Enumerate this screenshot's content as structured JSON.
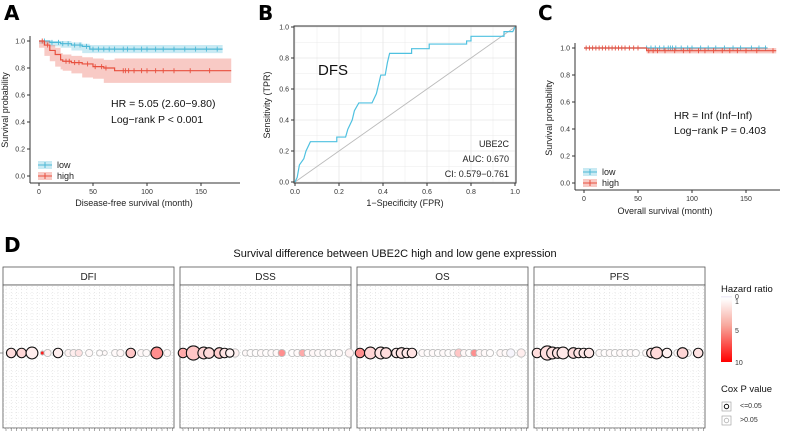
{
  "panel_labels": [
    "A",
    "B",
    "C",
    "D"
  ],
  "colors": {
    "low": "#4db8d6",
    "high": "#e8503f",
    "roc": "#4fc1e0",
    "diag": "#bbbbbb",
    "hr_low": "#eeeaf8",
    "hr_mid": "#ffffff",
    "hr_high": "#ff0000"
  },
  "chart_data": [
    {
      "id": "A",
      "type": "line",
      "xlabel": "Disease-free survival (month)",
      "ylabel": "Survival probability",
      "xlim": [
        0,
        180
      ],
      "ylim": [
        0,
        1
      ],
      "xticks": [
        "0",
        "50",
        "100",
        "150"
      ],
      "yticks": [
        "0.0",
        "0.2",
        "0.4",
        "0.6",
        "0.8",
        "1.0"
      ],
      "legend": [
        "low",
        "high"
      ],
      "legend_position": "bottom-left",
      "annotation": [
        "HR = 5.05 (2.60−9.80)",
        "Log−rank P < 0.001"
      ],
      "series": [
        {
          "name": "low",
          "x": [
            0,
            10,
            20,
            30,
            40,
            47,
            170
          ],
          "y": [
            1,
            0.99,
            0.98,
            0.97,
            0.96,
            0.94,
            0.94
          ],
          "ci_lo": [
            1,
            0.98,
            0.96,
            0.95,
            0.93,
            0.91,
            0.91
          ],
          "ci_hi": [
            1,
            1,
            1,
            0.99,
            0.98,
            0.97,
            0.97
          ],
          "censor": [
            5,
            12,
            18,
            22,
            27,
            33,
            38,
            44,
            50,
            55,
            60,
            65,
            70,
            78,
            82,
            88,
            95,
            100,
            108,
            115,
            125,
            135,
            145,
            155,
            165
          ]
        },
        {
          "name": "high",
          "x": [
            0,
            5,
            10,
            15,
            20,
            22,
            30,
            40,
            50,
            60,
            70,
            178
          ],
          "y": [
            1,
            0.97,
            0.93,
            0.9,
            0.86,
            0.85,
            0.84,
            0.83,
            0.81,
            0.8,
            0.78,
            0.78
          ],
          "ci_lo": [
            1,
            0.95,
            0.89,
            0.85,
            0.81,
            0.79,
            0.78,
            0.76,
            0.73,
            0.72,
            0.69,
            0.69
          ],
          "ci_hi": [
            1,
            1,
            0.97,
            0.95,
            0.91,
            0.9,
            0.89,
            0.88,
            0.87,
            0.86,
            0.87,
            0.87
          ],
          "censor": [
            3,
            8,
            25,
            28,
            33,
            37,
            45,
            52,
            58,
            62,
            78,
            80,
            83,
            88,
            95,
            100,
            108,
            115,
            125,
            140,
            158
          ]
        }
      ]
    },
    {
      "id": "B",
      "type": "line",
      "xlabel": "1−Specificity (FPR)",
      "ylabel": "Sensitivity (TPR)",
      "xlim": [
        0,
        1
      ],
      "ylim": [
        0,
        1
      ],
      "grid": true,
      "xticks": [
        "0.0",
        "0.2",
        "0.4",
        "0.6",
        "0.8",
        "1.0"
      ],
      "yticks": [
        "0.0",
        "0.2",
        "0.4",
        "0.6",
        "0.8",
        "1.0"
      ],
      "title_inset": "DFS",
      "annotation": [
        "UBE2C",
        "AUC: 0.670",
        "CI: 0.579−0.761"
      ],
      "series": [
        {
          "x": [
            0,
            0.01,
            0.02,
            0.04,
            0.05,
            0.07,
            0.19,
            0.19,
            0.23,
            0.24,
            0.26,
            0.27,
            0.29,
            0.35,
            0.37,
            0.38,
            0.39,
            0.41,
            0.42,
            0.43,
            0.53,
            0.53,
            0.61,
            0.61,
            0.78,
            0.78,
            0.8,
            0.8,
            0.95,
            0.95,
            0.99,
            1
          ],
          "y": [
            0,
            0.03,
            0.11,
            0.15,
            0.2,
            0.26,
            0.26,
            0.29,
            0.29,
            0.34,
            0.4,
            0.46,
            0.51,
            0.51,
            0.57,
            0.63,
            0.69,
            0.69,
            0.77,
            0.83,
            0.83,
            0.86,
            0.86,
            0.89,
            0.89,
            0.91,
            0.91,
            0.94,
            0.94,
            0.97,
            0.97,
            1
          ]
        }
      ]
    },
    {
      "id": "C",
      "type": "line",
      "xlabel": "Overall survival (month)",
      "ylabel": "Survival probability",
      "xlim": [
        0,
        180
      ],
      "ylim": [
        0,
        1
      ],
      "xticks": [
        "0",
        "50",
        "100",
        "150"
      ],
      "yticks": [
        "0.0",
        "0.2",
        "0.4",
        "0.6",
        "0.8",
        "1.0"
      ],
      "legend": [
        "low",
        "high"
      ],
      "legend_position": "bottom-left",
      "annotation": [
        "HR = Inf (Inf−Inf)",
        "Log−rank P = 0.403"
      ],
      "series": [
        {
          "name": "low",
          "x": [
            0,
            170
          ],
          "y": [
            1,
            1
          ],
          "ci_lo": [
            1,
            1
          ],
          "ci_hi": [
            1,
            1
          ],
          "censor": [
            58,
            62,
            66,
            70,
            74,
            78,
            80,
            82,
            85,
            90,
            96,
            100,
            108,
            115,
            122,
            130,
            138,
            145,
            155,
            162,
            168
          ]
        },
        {
          "name": "high",
          "x": [
            0,
            58,
            58,
            178
          ],
          "y": [
            1,
            1,
            0.98,
            0.98
          ],
          "ci_lo": [
            1,
            1,
            0.96,
            0.96
          ],
          "ci_hi": [
            1,
            1,
            1,
            1
          ],
          "censor": [
            2,
            5,
            8,
            11,
            14,
            17,
            20,
            23,
            26,
            29,
            32,
            35,
            38,
            42,
            46,
            50,
            60,
            64,
            68,
            75,
            84,
            92,
            98,
            106,
            112,
            120,
            128,
            135,
            142,
            150,
            160,
            175
          ]
        }
      ]
    },
    {
      "id": "D",
      "type": "scatter",
      "title": "Survival difference between UBE2C high and low gene expression",
      "facets": [
        "DFI",
        "DSS",
        "OS",
        "PFS"
      ],
      "legend_hr": {
        "title": "Hazard ratio",
        "ticks": [
          "0",
          "1",
          "5",
          "10"
        ]
      },
      "legend_p": {
        "title": "Cox P value",
        "items": [
          "<=0.05",
          ">0.05"
        ]
      },
      "points": [
        [
          [
            1,
            2.2,
            1,
            3
          ],
          [
            3,
            2.4,
            1,
            3
          ],
          [
            5,
            1.6,
            1,
            4
          ],
          [
            7,
            9,
            0,
            0.6
          ],
          [
            8,
            1.5,
            0,
            2
          ],
          [
            10,
            1.6,
            1,
            3
          ],
          [
            12,
            1.4,
            0,
            2
          ],
          [
            13,
            1.6,
            0,
            2
          ],
          [
            14,
            2,
            0,
            2
          ],
          [
            16,
            1.2,
            0,
            2
          ],
          [
            18,
            1.1,
            0,
            1.5
          ],
          [
            19,
            1.2,
            0,
            1
          ],
          [
            21,
            1.2,
            0,
            2
          ],
          [
            22,
            1.3,
            0,
            2
          ],
          [
            24,
            3,
            1,
            3
          ],
          [
            26,
            1.3,
            0,
            2
          ],
          [
            27,
            1.2,
            0,
            2
          ],
          [
            29,
            5,
            1,
            4
          ],
          [
            31,
            1.3,
            0,
            2
          ]
        ],
        [
          [
            0,
            4,
            1,
            3
          ],
          [
            2,
            3,
            1,
            5
          ],
          [
            4,
            2.5,
            1,
            4
          ],
          [
            5,
            2.3,
            1,
            3.5
          ],
          [
            7,
            2.8,
            1,
            3.5
          ],
          [
            8,
            2,
            1,
            3
          ],
          [
            9,
            1.5,
            1,
            2.5
          ],
          [
            10,
            1.5,
            0,
            2.5
          ],
          [
            12,
            1.2,
            0,
            1.5
          ],
          [
            13,
            1.1,
            0,
            2
          ],
          [
            14,
            1.1,
            0,
            2
          ],
          [
            15,
            1.2,
            0,
            2
          ],
          [
            16,
            1.1,
            0,
            2
          ],
          [
            17,
            1.2,
            0,
            2
          ],
          [
            18,
            1.3,
            0,
            2
          ],
          [
            19,
            5,
            0,
            2
          ],
          [
            21,
            1.1,
            0,
            2
          ],
          [
            22,
            1.2,
            0,
            2
          ],
          [
            23,
            4,
            0,
            2
          ],
          [
            24,
            1.2,
            0,
            2
          ],
          [
            25,
            1.3,
            0,
            2
          ],
          [
            26,
            1.2,
            0,
            2
          ],
          [
            27,
            1.1,
            0,
            2
          ],
          [
            28,
            1.2,
            0,
            2
          ],
          [
            29,
            1.1,
            0,
            2
          ],
          [
            30,
            1.2,
            0,
            2
          ],
          [
            32,
            1.5,
            0,
            2.5
          ]
        ],
        [
          [
            0,
            5,
            1,
            3
          ],
          [
            2,
            2.5,
            1,
            4
          ],
          [
            4,
            2,
            1,
            4
          ],
          [
            5,
            2.2,
            1,
            3.5
          ],
          [
            7,
            1.8,
            1,
            3
          ],
          [
            8,
            2,
            1,
            3.5
          ],
          [
            9,
            1.8,
            1,
            3
          ],
          [
            10,
            2,
            1,
            3
          ],
          [
            12,
            1.2,
            0,
            2
          ],
          [
            13,
            1.1,
            0,
            2
          ],
          [
            14,
            1.2,
            0,
            2
          ],
          [
            15,
            1.1,
            0,
            2
          ],
          [
            16,
            1.2,
            0,
            2
          ],
          [
            17,
            1.1,
            0,
            2
          ],
          [
            18,
            1.2,
            0,
            2
          ],
          [
            19,
            3,
            0,
            2.5
          ],
          [
            20,
            1.3,
            0,
            2
          ],
          [
            21,
            1.1,
            0,
            2
          ],
          [
            22,
            5,
            0,
            2
          ],
          [
            23,
            1.4,
            0,
            2
          ],
          [
            24,
            1.2,
            0,
            2
          ],
          [
            25,
            1.1,
            0,
            2
          ],
          [
            27,
            1.3,
            0,
            2
          ],
          [
            28,
            1.2,
            0,
            2
          ],
          [
            29,
            0.5,
            0,
            2.5
          ],
          [
            31,
            1.6,
            0,
            2.5
          ]
        ],
        [
          [
            0,
            2.2,
            1,
            3
          ],
          [
            2,
            2.2,
            1,
            5
          ],
          [
            3,
            2.1,
            1,
            4
          ],
          [
            4,
            2,
            1,
            3.5
          ],
          [
            5,
            1.8,
            1,
            4
          ],
          [
            7,
            2.2,
            1,
            3.5
          ],
          [
            8,
            2,
            1,
            3
          ],
          [
            9,
            1.8,
            1,
            3
          ],
          [
            10,
            1.9,
            1,
            3
          ],
          [
            12,
            1.2,
            0,
            2
          ],
          [
            13,
            1.1,
            0,
            2
          ],
          [
            14,
            1.2,
            0,
            2
          ],
          [
            15,
            1.1,
            0,
            2
          ],
          [
            16,
            1.2,
            0,
            2
          ],
          [
            17,
            1.1,
            0,
            2
          ],
          [
            18,
            1.2,
            0,
            2
          ],
          [
            19,
            1.1,
            0,
            2
          ],
          [
            21,
            1.2,
            0,
            2
          ],
          [
            22,
            2,
            1,
            3
          ],
          [
            23,
            2.3,
            1,
            4
          ],
          [
            24,
            1.3,
            0,
            2
          ],
          [
            25,
            1.5,
            1,
            3
          ],
          [
            27,
            1.2,
            0,
            2
          ],
          [
            28,
            2.5,
            1,
            3.5
          ],
          [
            29,
            1.2,
            0,
            2
          ],
          [
            31,
            2,
            1,
            3
          ]
        ]
      ]
    }
  ]
}
